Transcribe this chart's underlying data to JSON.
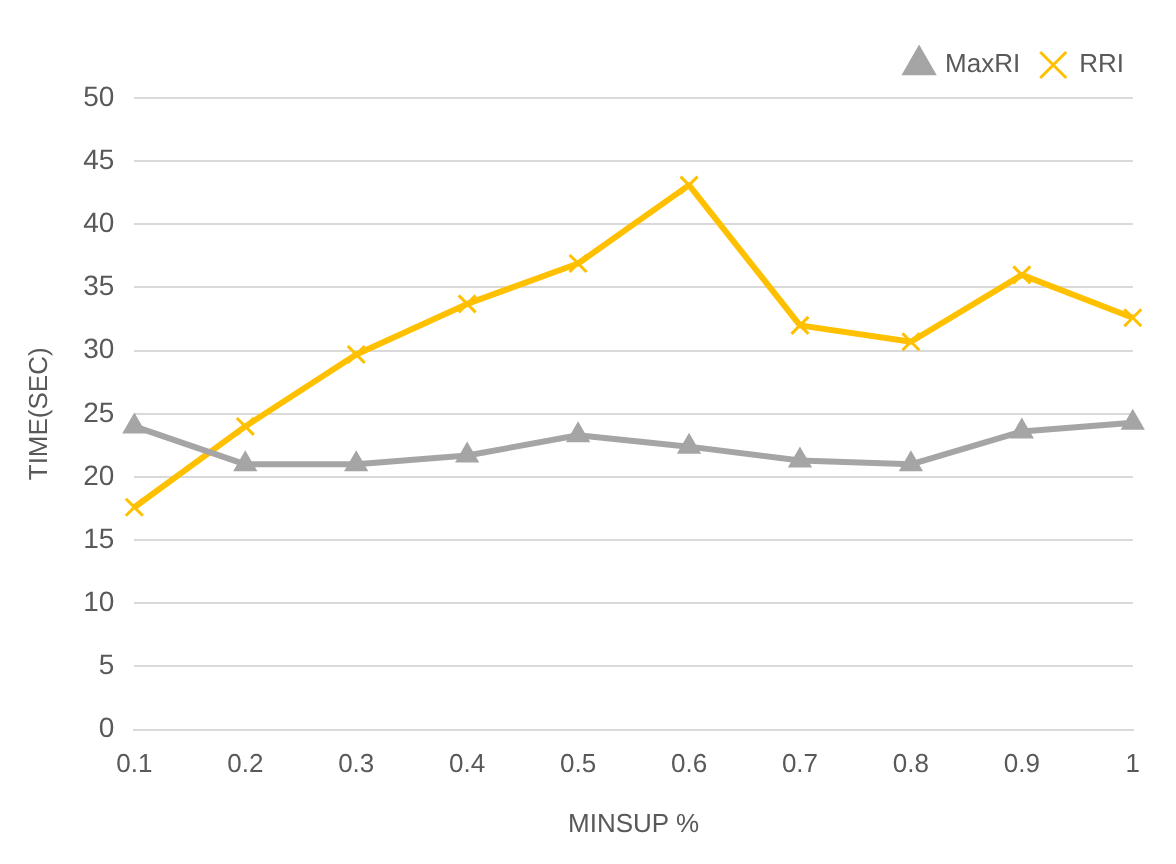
{
  "chart_data": {
    "type": "line",
    "xlabel": "MINSUP %",
    "ylabel": "TIME(SEC)",
    "categories": [
      "0.1",
      "0.2",
      "0.3",
      "0.4",
      "0.5",
      "0.6",
      "0.7",
      "0.8",
      "0.9",
      "1"
    ],
    "series": [
      {
        "name": "MaxRI",
        "color": "#a5a5a5",
        "marker": "triangle",
        "values": [
          24,
          21,
          21,
          21.7,
          23.3,
          22.4,
          21.3,
          21,
          23.6,
          24.3
        ]
      },
      {
        "name": "RRI",
        "color": "#ffc000",
        "marker": "cross",
        "values": [
          17.6,
          24,
          29.7,
          33.7,
          36.9,
          43.1,
          32,
          30.7,
          36,
          32.6
        ]
      }
    ],
    "ylim": [
      0,
      50
    ],
    "yticks": [
      0,
      5,
      10,
      15,
      20,
      25,
      30,
      35,
      40,
      45,
      50
    ],
    "grid": "y",
    "legend": "top right"
  }
}
